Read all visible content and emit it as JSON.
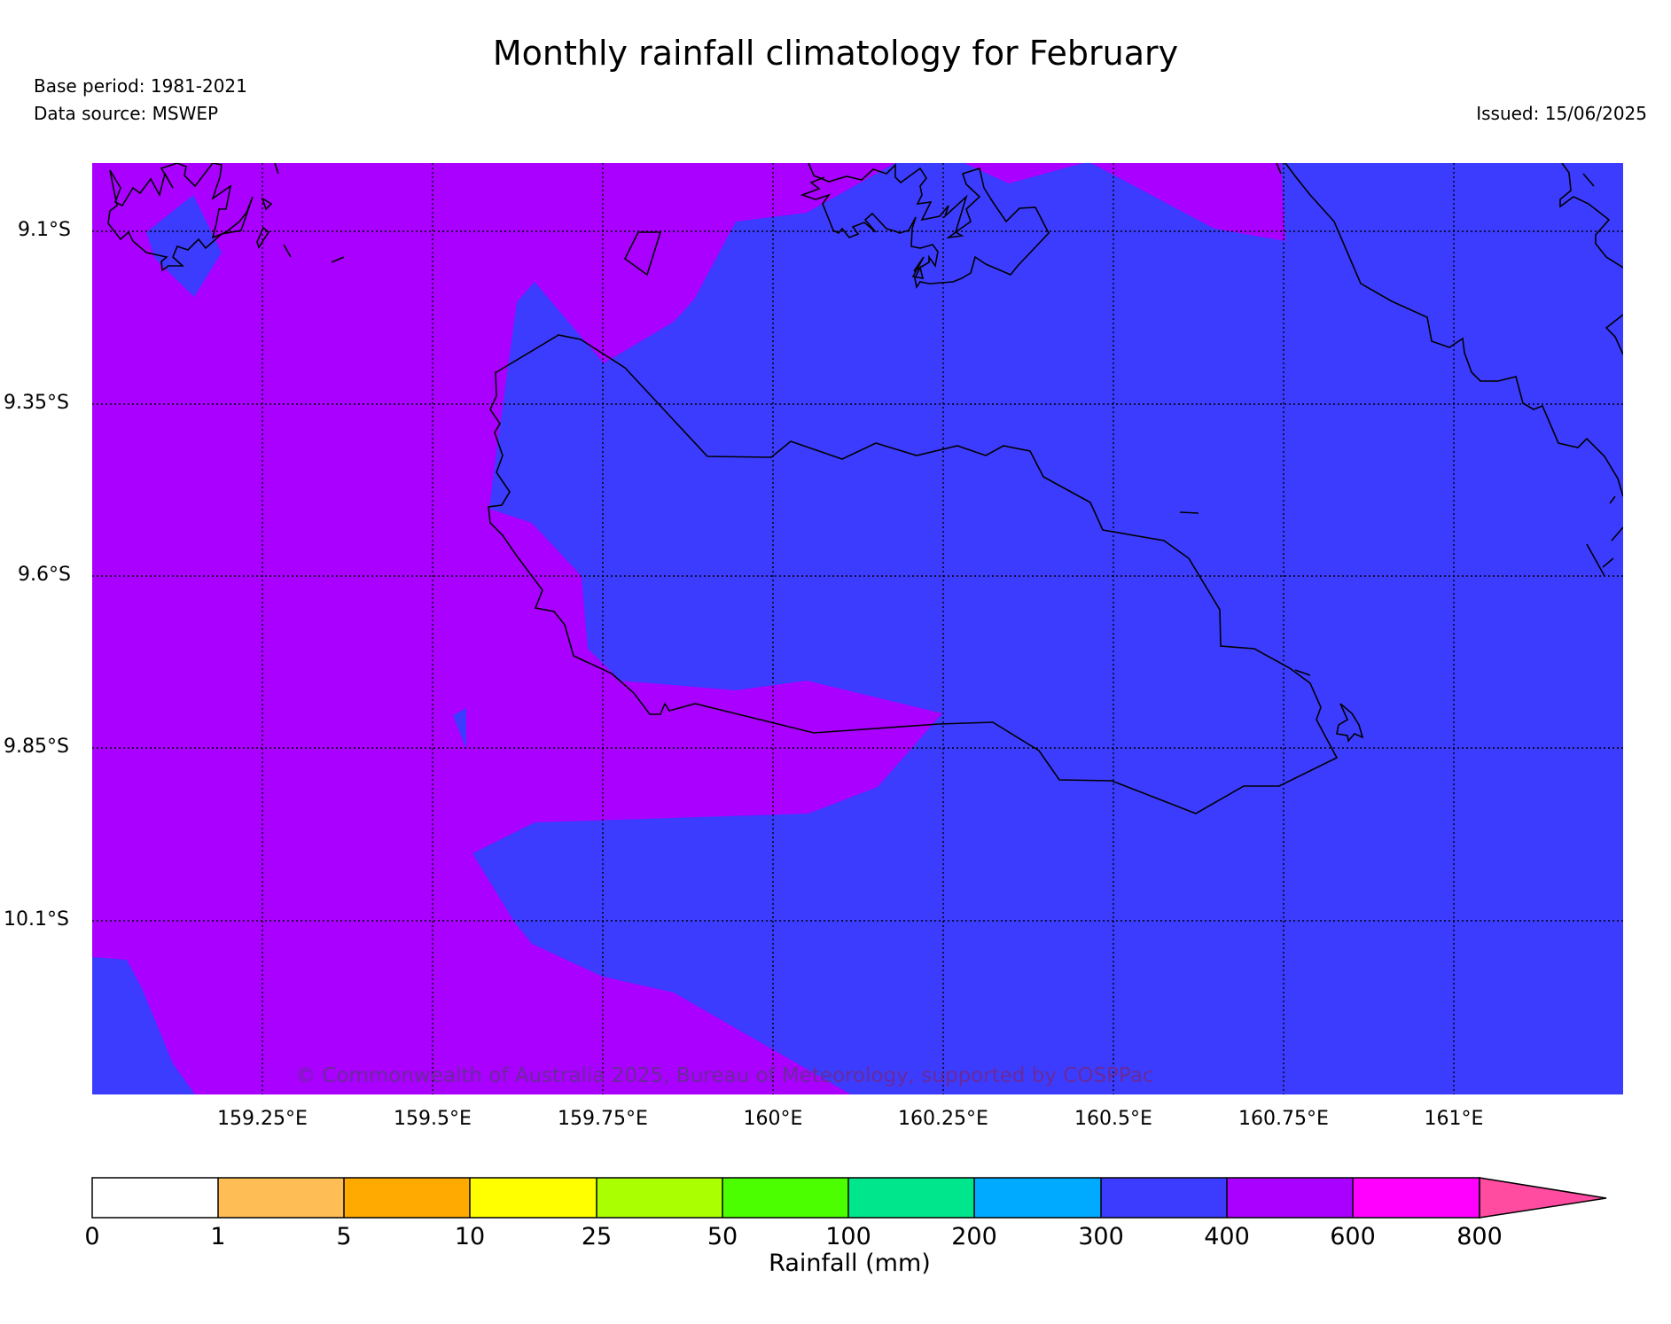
{
  "header": {
    "title": "Monthly rainfall climatology for February",
    "base_period": "Base period: 1981-2021",
    "data_source": "Data source: MSWEP",
    "issued": "Issued: 15/06/2025"
  },
  "map": {
    "lat_labels": [
      "9.1°S",
      "9.35°S",
      "9.6°S",
      "9.85°S",
      "10.1°S"
    ],
    "lon_labels": [
      "159.25°E",
      "159.5°E",
      "159.75°E",
      "160°E",
      "160.25°E",
      "160.5°E",
      "160.75°E",
      "161°E"
    ],
    "copyright": "© Commonwealth of Australia 2025, Bureau of Meteorology, supported by COSPPac",
    "region_colors": {
      "300-400": "#3c3cff",
      "400-600": "#aa00ff"
    }
  },
  "colorbar": {
    "title": "Rainfall (mm)",
    "ticks": [
      "0",
      "1",
      "5",
      "10",
      "25",
      "50",
      "100",
      "200",
      "300",
      "400",
      "600",
      "800"
    ],
    "colors": [
      "#ffffff",
      "#ffbe55",
      "#ffaa00",
      "#ffff00",
      "#aaff00",
      "#4cff00",
      "#00e68c",
      "#00aaff",
      "#3c3cff",
      "#aa00ff",
      "#ff00ff",
      "#ff4ca0"
    ]
  }
}
